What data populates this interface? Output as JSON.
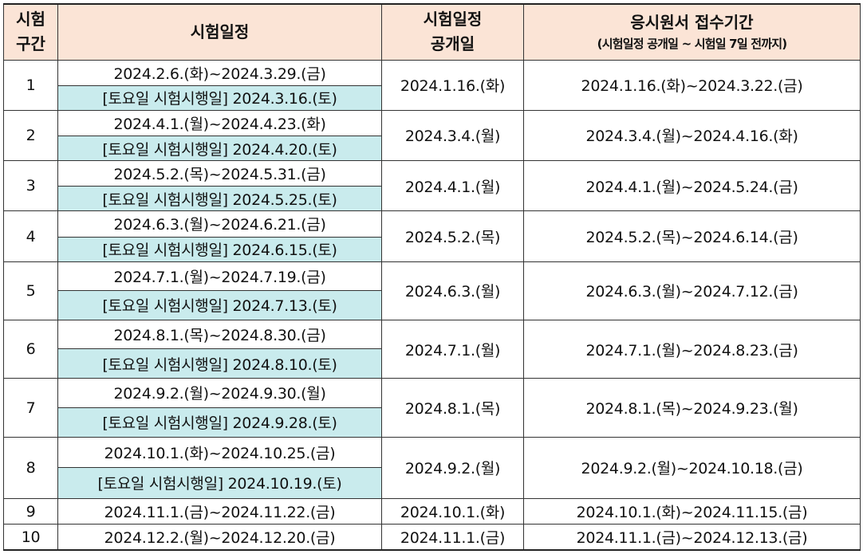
{
  "headers": {
    "section": "시험\n구간",
    "schedule": "시험일정",
    "announce": "시험일정\n공개일",
    "apply": "응시원서 접수기간",
    "apply_note": "(시험일정 공개일 ~ 시험일 7일 전까지)"
  },
  "rows": [
    {
      "no": "1",
      "range": "2024.2.6.(화)~2024.3.29.(금)",
      "saturday": "[토요일 시험시행일] 2024.3.16.(토)",
      "announce": "2024.1.16.(화)",
      "apply": "2024.1.16.(화)~2024.3.22.(금)"
    },
    {
      "no": "2",
      "range": "2024.4.1.(월)~2024.4.23.(화)",
      "saturday": "[토요일 시험시행일] 2024.4.20.(토)",
      "announce": "2024.3.4.(월)",
      "apply": "2024.3.4.(월)~2024.4.16.(화)"
    },
    {
      "no": "3",
      "range": "2024.5.2.(목)~2024.5.31.(금)",
      "saturday": "[토요일 시험시행일] 2024.5.25.(토)",
      "announce": "2024.4.1.(월)",
      "apply": "2024.4.1.(월)~2024.5.24.(금)"
    },
    {
      "no": "4",
      "range": "2024.6.3.(월)~2024.6.21.(금)",
      "saturday": "[토요일 시험시행일] 2024.6.15.(토)",
      "announce": "2024.5.2.(목)",
      "apply": "2024.5.2.(목)~2024.6.14.(금)"
    },
    {
      "no": "5",
      "range": "2024.7.1.(월)~2024.7.19.(금)",
      "saturday": "[토요일 시험시행일] 2024.7.13.(토)",
      "announce": "2024.6.3.(월)",
      "apply": "2024.6.3.(월)~2024.7.12.(금)"
    },
    {
      "no": "6",
      "range": "2024.8.1.(목)~2024.8.30.(금)",
      "saturday": "[토요일 시험시행일] 2024.8.10.(토)",
      "announce": "2024.7.1.(월)",
      "apply": "2024.7.1.(월)~2024.8.23.(금)"
    },
    {
      "no": "7",
      "range": "2024.9.2.(월)~2024.9.30.(월)",
      "saturday": "[토요일 시험시행일] 2024.9.28.(토)",
      "announce": "2024.8.1.(목)",
      "apply": "2024.8.1.(목)~2024.9.23.(월)"
    },
    {
      "no": "8",
      "range": "2024.10.1.(화)~2024.10.25.(금)",
      "saturday": "[토요일 시험시행일] 2024.10.19.(토)",
      "announce": "2024.9.2.(월)",
      "apply": "2024.9.2.(월)~2024.10.18.(금)"
    },
    {
      "no": "9",
      "range": "2024.11.1.(금)~2024.11.22.(금)",
      "saturday": "",
      "announce": "2024.10.1.(화)",
      "apply": "2024.10.1.(화)~2024.11.15.(금)"
    },
    {
      "no": "10",
      "range": "2024.12.2.(월)~2024.12.20.(금)",
      "saturday": "",
      "announce": "2024.11.1.(금)",
      "apply": "2024.11.1.(금)~2024.12.13.(금)"
    }
  ],
  "colors": {
    "header_bg": "#fbe4d6",
    "saturday_bg": "#c9ebed",
    "border": "#333333"
  }
}
